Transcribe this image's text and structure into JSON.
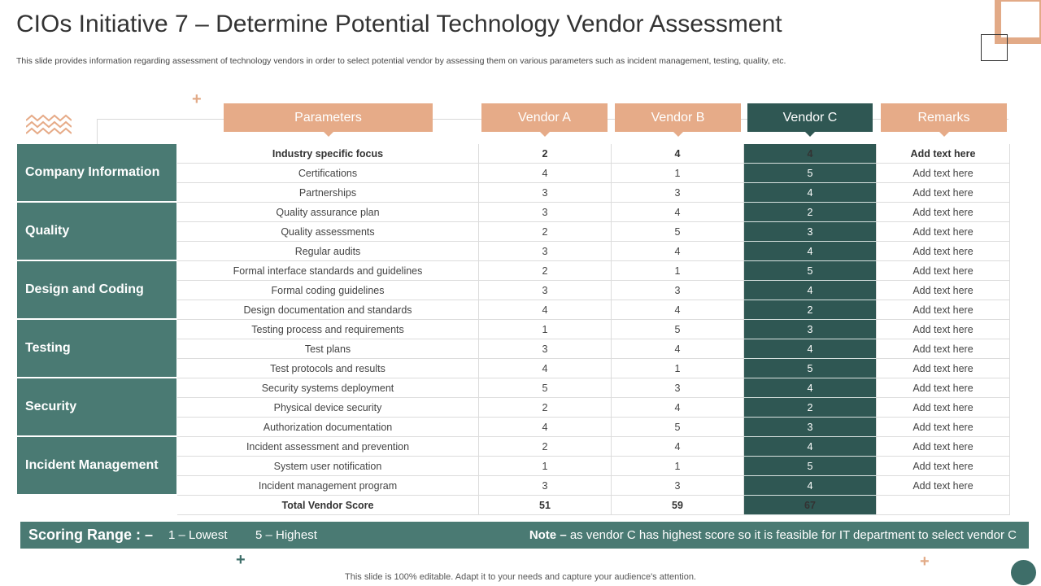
{
  "title": "CIOs Initiative 7 – Determine Potential Technology Vendor Assessment",
  "subtitle": "This slide provides information regarding assessment of technology vendors in order to select potential vendor by assessing them on various parameters such as incident management, testing, quality, etc.",
  "headers": {
    "parameters": "Parameters",
    "vendor_a": "Vendor A",
    "vendor_b": "Vendor B",
    "vendor_c": "Vendor C",
    "remarks": "Remarks"
  },
  "groups": [
    {
      "label": "Company Information",
      "rows": [
        {
          "param": "Industry specific focus",
          "a": "2",
          "b": "4",
          "c": "4",
          "remark": "Add text here",
          "bold": true
        },
        {
          "param": "Certifications",
          "a": "4",
          "b": "1",
          "c": "5",
          "remark": "Add text here"
        },
        {
          "param": "Partnerships",
          "a": "3",
          "b": "3",
          "c": "4",
          "remark": "Add text here"
        }
      ]
    },
    {
      "label": "Quality",
      "rows": [
        {
          "param": "Quality assurance plan",
          "a": "3",
          "b": "4",
          "c": "2",
          "remark": "Add text here"
        },
        {
          "param": "Quality assessments",
          "a": "2",
          "b": "5",
          "c": "3",
          "remark": "Add text here"
        },
        {
          "param": "Regular audits",
          "a": "3",
          "b": "4",
          "c": "4",
          "remark": "Add text here"
        }
      ]
    },
    {
      "label": "Design and Coding",
      "rows": [
        {
          "param": "Formal interface standards and guidelines",
          "a": "2",
          "b": "1",
          "c": "5",
          "remark": "Add text here"
        },
        {
          "param": "Formal coding guidelines",
          "a": "3",
          "b": "3",
          "c": "4",
          "remark": "Add text here"
        },
        {
          "param": "Design documentation and standards",
          "a": "4",
          "b": "4",
          "c": "2",
          "remark": "Add text here"
        }
      ]
    },
    {
      "label": "Testing",
      "rows": [
        {
          "param": "Testing process and requirements",
          "a": "1",
          "b": "5",
          "c": "3",
          "remark": "Add text here"
        },
        {
          "param": "Test plans",
          "a": "3",
          "b": "4",
          "c": "4",
          "remark": "Add text here"
        },
        {
          "param": "Test protocols and results",
          "a": "4",
          "b": "1",
          "c": "5",
          "remark": "Add text here"
        }
      ]
    },
    {
      "label": "Security",
      "rows": [
        {
          "param": "Security systems deployment",
          "a": "5",
          "b": "3",
          "c": "4",
          "remark": "Add text here"
        },
        {
          "param": "Physical device security",
          "a": "2",
          "b": "4",
          "c": "2",
          "remark": "Add text here"
        },
        {
          "param": "Authorization documentation",
          "a": "4",
          "b": "5",
          "c": "3",
          "remark": "Add text here"
        }
      ]
    },
    {
      "label": "Incident Management",
      "rows": [
        {
          "param": "Incident assessment and prevention",
          "a": "2",
          "b": "4",
          "c": "4",
          "remark": "Add text here"
        },
        {
          "param": "System user notification",
          "a": "1",
          "b": "1",
          "c": "5",
          "remark": "Add text here"
        },
        {
          "param": "Incident management program",
          "a": "3",
          "b": "3",
          "c": "4",
          "remark": "Add text here"
        }
      ]
    }
  ],
  "total": {
    "param": "Total Vendor Score",
    "a": "51",
    "b": "59",
    "c": "67",
    "remark": ""
  },
  "scoring": {
    "label": "Scoring Range : –",
    "lowest": "1 – Lowest",
    "highest": "5 – Highest",
    "note_label": "Note –",
    "note_text": " as vendor C has highest score so it is feasible for IT department to select vendor C"
  },
  "footer": "This slide is 100% editable. Adapt it to your needs and capture your audience's attention.",
  "colors": {
    "accent_peach": "#e6ab88",
    "teal": "#4a7a73",
    "dark_teal": "#2f5753"
  }
}
